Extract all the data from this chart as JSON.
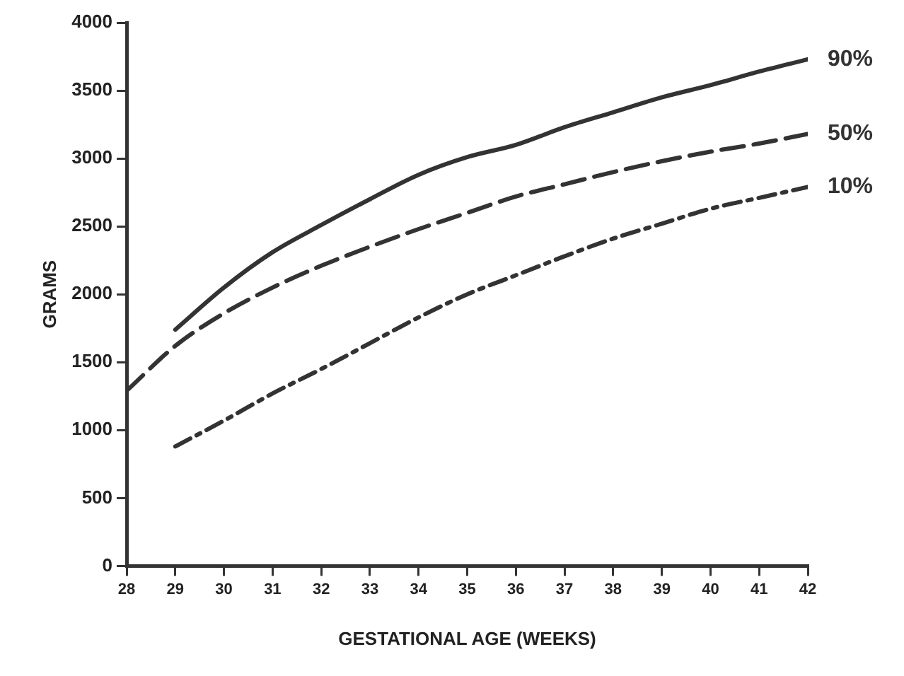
{
  "chart_data": {
    "type": "line",
    "xlabel": "GESTATIONAL AGE (WEEKS)",
    "ylabel": "GRAMS",
    "xlim": [
      28,
      42
    ],
    "xticks": [
      28,
      29,
      30,
      31,
      32,
      33,
      34,
      35,
      36,
      37,
      38,
      39,
      40,
      41,
      42
    ],
    "ylim": [
      0,
      4000
    ],
    "yticks": [
      0,
      500,
      1000,
      1500,
      2000,
      2500,
      3000,
      3500,
      4000
    ],
    "grid": false,
    "legend": false,
    "marker": "none",
    "series": [
      {
        "name": "90%",
        "color": "#333333",
        "line_style": "solid",
        "x": [
          29,
          30,
          31,
          32,
          33,
          34,
          35,
          36,
          37,
          38,
          39,
          40,
          41,
          42
        ],
        "values": [
          1740,
          2050,
          2310,
          2510,
          2700,
          2880,
          3010,
          3100,
          3230,
          3340,
          3450,
          3540,
          3640,
          3730
        ]
      },
      {
        "name": "50%",
        "color": "#333333",
        "line_style": "dashed",
        "x": [
          28,
          29,
          30,
          31,
          32,
          33,
          34,
          35,
          36,
          37,
          38,
          39,
          40,
          41,
          42
        ],
        "values": [
          1290,
          1620,
          1860,
          2050,
          2210,
          2350,
          2480,
          2600,
          2720,
          2810,
          2900,
          2980,
          3050,
          3110,
          3180
        ]
      },
      {
        "name": "10%",
        "color": "#333333",
        "line_style": "dotted",
        "x": [
          29,
          30,
          31,
          32,
          33,
          34,
          35,
          36,
          37,
          38,
          39,
          40,
          41,
          42
        ],
        "values": [
          880,
          1070,
          1270,
          1450,
          1640,
          1830,
          2000,
          2140,
          2280,
          2410,
          2520,
          2630,
          2710,
          2790
        ]
      }
    ]
  }
}
